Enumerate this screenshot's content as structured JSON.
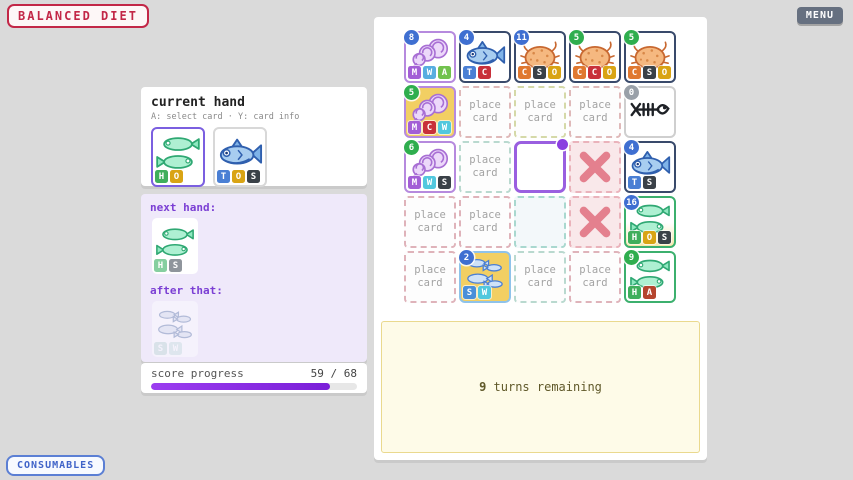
{
  "app": {
    "title": "BALANCED DIET",
    "menu_label": "MENU",
    "consumables_label": "CONSUMABLES"
  },
  "hand": {
    "title": "current hand",
    "hint": "A: select card · Y: card info",
    "cards": [
      {
        "art": "herring2",
        "selected": true,
        "badges": [
          [
            "H",
            "#3fae5c"
          ],
          [
            "O",
            "#d9a414"
          ]
        ]
      },
      {
        "art": "tuna",
        "selected": false,
        "badges": [
          [
            "T",
            "#4a7fd4"
          ],
          [
            "O",
            "#d9a414"
          ],
          [
            "S",
            "#3a4148"
          ]
        ]
      }
    ]
  },
  "upcoming": {
    "next_label": "next hand:",
    "next_card": {
      "art": "herring2",
      "badges": [
        [
          "H",
          "#86cfa0"
        ],
        [
          "S",
          "#8f959c"
        ]
      ],
      "faded": false
    },
    "after_label": "after that:",
    "after_card": {
      "art": "sardines",
      "badges": [
        [
          "S",
          "#a8ded6"
        ],
        [
          "W",
          "#b8e8de"
        ]
      ],
      "faded": true
    }
  },
  "score": {
    "label": "score progress",
    "value": 59,
    "max": 68,
    "display": "59 / 68",
    "bar_color": "#8b2be2"
  },
  "grid": {
    "rows": 5,
    "cols": 5,
    "cells": [
      {
        "kind": "card",
        "art": "shrimp",
        "number": "8",
        "number_color": "#3f6fd1",
        "border": "#b68ade",
        "bg": "#ffffff",
        "badges": [
          [
            "M",
            "#a35fd6"
          ],
          [
            "W",
            "#58aee0"
          ],
          [
            "A",
            "#72c24e"
          ]
        ]
      },
      {
        "kind": "card",
        "art": "tuna",
        "number": "4",
        "number_color": "#3f6fd1",
        "border": "#394a6b",
        "bg": "#ffffff",
        "badges": [
          [
            "T",
            "#4a7fd4"
          ],
          [
            "C",
            "#c8303a"
          ]
        ]
      },
      {
        "kind": "card",
        "art": "crab",
        "number": "11",
        "number_color": "#3f6fd1",
        "border": "#394a6b",
        "bg": "#ffffff",
        "badges": [
          [
            "C",
            "#e07830"
          ],
          [
            "S",
            "#3a4148"
          ],
          [
            "O",
            "#d9a414"
          ]
        ]
      },
      {
        "kind": "card",
        "art": "crab",
        "number": "5",
        "number_color": "#2fae4e",
        "border": "#394a6b",
        "bg": "#ffffff",
        "badges": [
          [
            "C",
            "#e07830"
          ],
          [
            "C",
            "#c8303a"
          ],
          [
            "O",
            "#d9a414"
          ]
        ]
      },
      {
        "kind": "card",
        "art": "crab",
        "number": "5",
        "number_color": "#2fae4e",
        "border": "#394a6b",
        "bg": "#ffffff",
        "badges": [
          [
            "C",
            "#e07830"
          ],
          [
            "S",
            "#3a4148"
          ],
          [
            "O",
            "#d9a414"
          ]
        ]
      },
      {
        "kind": "card",
        "art": "shrimp",
        "number": "5",
        "number_color": "#2fae4e",
        "border": "#b68ade",
        "bg": "#f2cf63",
        "badges": [
          [
            "M",
            "#a35fd6"
          ],
          [
            "C",
            "#c8303a"
          ],
          [
            "W",
            "#52c8de"
          ]
        ]
      },
      {
        "kind": "place",
        "label": "place card",
        "dash": "#dfb9b9"
      },
      {
        "kind": "place",
        "label": "place card",
        "dash": "#d5d9a8"
      },
      {
        "kind": "place",
        "label": "place card",
        "dash": "#dfb9b9"
      },
      {
        "kind": "card",
        "art": "fishbone",
        "number": "0",
        "number_color": "#99a0a8",
        "border": "#cfcfcf",
        "bg": "#ffffff",
        "badges": []
      },
      {
        "kind": "card",
        "art": "shrimp",
        "number": "6",
        "number_color": "#2fae4e",
        "border": "#b68ade",
        "bg": "#ffffff",
        "badges": [
          [
            "M",
            "#a35fd6"
          ],
          [
            "W",
            "#52c8de"
          ],
          [
            "S",
            "#3a4148"
          ]
        ]
      },
      {
        "kind": "place",
        "label": "place card",
        "dash": "#b9d9cf"
      },
      {
        "kind": "cursor"
      },
      {
        "kind": "blocked"
      },
      {
        "kind": "card",
        "art": "tuna",
        "number": "4",
        "number_color": "#3f6fd1",
        "border": "#394a6b",
        "bg": "#ffffff",
        "badges": [
          [
            "T",
            "#4a7fd4"
          ],
          [
            "S",
            "#3a4148"
          ]
        ]
      },
      {
        "kind": "place",
        "label": "place card",
        "dash": "#dfb3ba"
      },
      {
        "kind": "place",
        "label": "place card",
        "dash": "#dfb3ba"
      },
      {
        "kind": "empty"
      },
      {
        "kind": "blocked"
      },
      {
        "kind": "card",
        "art": "herring2",
        "number": "16",
        "number_color": "#3f6fd1",
        "border": "#3cb06e",
        "bg": "#ffffff",
        "bg2": "#f6e8a8",
        "badges": [
          [
            "H",
            "#3fae5c"
          ],
          [
            "O",
            "#d9a414"
          ],
          [
            "S",
            "#3a4148"
          ]
        ]
      },
      {
        "kind": "place",
        "label": "place card",
        "dash": "#dfb3ba"
      },
      {
        "kind": "card",
        "art": "sardines",
        "number": "2",
        "number_color": "#3f6fd1",
        "border": "#8fc3ea",
        "bg": "#f2cf63",
        "badges": [
          [
            "S",
            "#4a8fd9"
          ],
          [
            "W",
            "#52c8de"
          ]
        ]
      },
      {
        "kind": "place",
        "label": "place card",
        "dash": "#b9d9cf"
      },
      {
        "kind": "place",
        "label": "place card",
        "dash": "#dfb3ba"
      },
      {
        "kind": "card",
        "art": "herring2",
        "number": "9",
        "number_color": "#2fae4e",
        "border": "#3cb06e",
        "bg": "#ffffff",
        "badges": [
          [
            "H",
            "#3fae5c"
          ],
          [
            "A",
            "#b5452e"
          ]
        ]
      }
    ]
  },
  "message": {
    "turns_number": "9",
    "text": " turns remaining"
  },
  "colors": {
    "brand": "#c22747",
    "accent_purple": "#8b2be2",
    "blocked_x": "#e4808e",
    "message_bg": "#fefbe8"
  }
}
